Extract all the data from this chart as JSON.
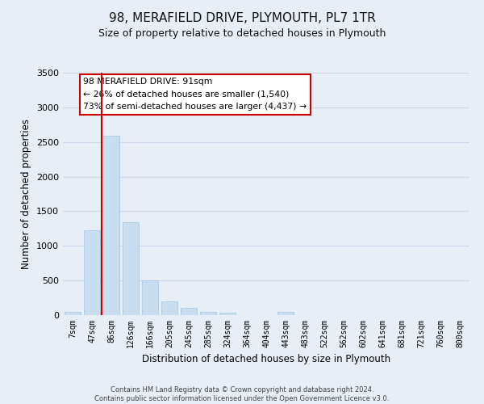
{
  "title": "98, MERAFIELD DRIVE, PLYMOUTH, PL7 1TR",
  "subtitle": "Size of property relative to detached houses in Plymouth",
  "xlabel": "Distribution of detached houses by size in Plymouth",
  "ylabel": "Number of detached properties",
  "categories": [
    "7sqm",
    "47sqm",
    "86sqm",
    "126sqm",
    "166sqm",
    "205sqm",
    "245sqm",
    "285sqm",
    "324sqm",
    "364sqm",
    "404sqm",
    "443sqm",
    "483sqm",
    "522sqm",
    "562sqm",
    "602sqm",
    "641sqm",
    "681sqm",
    "721sqm",
    "760sqm",
    "800sqm"
  ],
  "bar_values": [
    50,
    1230,
    2590,
    1340,
    500,
    200,
    110,
    50,
    30,
    0,
    0,
    50,
    0,
    0,
    0,
    0,
    0,
    0,
    0,
    0,
    0
  ],
  "bar_color": "#c8ddf0",
  "bar_edge_color": "#a8c4dc",
  "grid_color": "#ccd8e8",
  "background_color": "#e8eef6",
  "ylim": [
    0,
    3500
  ],
  "yticks": [
    0,
    500,
    1000,
    1500,
    2000,
    2500,
    3000,
    3500
  ],
  "property_line_color": "#cc0000",
  "annotation_title": "98 MERAFIELD DRIVE: 91sqm",
  "annotation_line1": "← 26% of detached houses are smaller (1,540)",
  "annotation_line2": "73% of semi-detached houses are larger (4,437) →",
  "annotation_box_color": "#ffffff",
  "annotation_box_edge": "#cc0000",
  "footer_line1": "Contains HM Land Registry data © Crown copyright and database right 2024.",
  "footer_line2": "Contains public sector information licensed under the Open Government Licence v3.0."
}
